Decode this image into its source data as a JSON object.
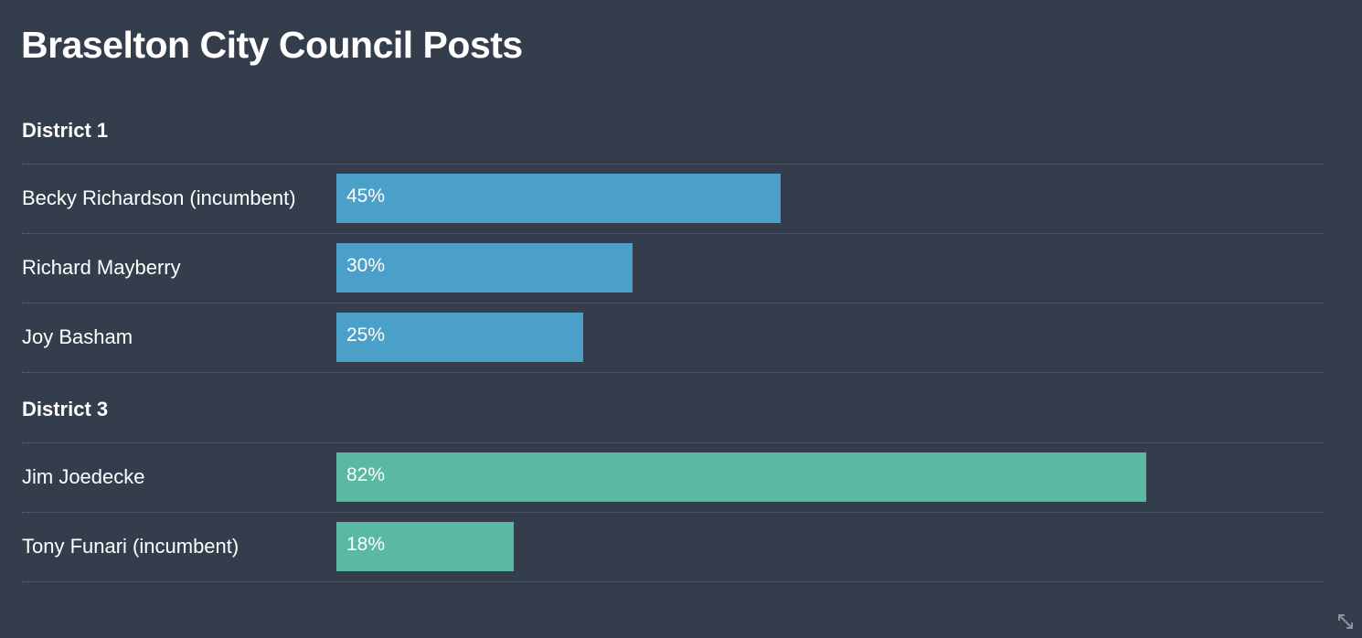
{
  "title": "Braselton City Council Posts",
  "colors": {
    "background": "#343d4c",
    "district_1_bar": "#4ba0ca",
    "district_3_bar": "#5ab9a2"
  },
  "chart_data": {
    "type": "bar",
    "orientation": "horizontal",
    "title": "Braselton City Council Posts",
    "xlim": [
      0,
      100
    ],
    "groups": [
      {
        "name": "District 1",
        "color": "#4ba0ca",
        "categories": [
          "Becky Richardson (incumbent)",
          "Richard Mayberry",
          "Joy Basham"
        ],
        "values": [
          45,
          30,
          25
        ],
        "labels": [
          "45%",
          "30%",
          "25%"
        ]
      },
      {
        "name": "District 3",
        "color": "#5ab9a2",
        "categories": [
          "Jim Joedecke",
          "Tony Funari (incumbent)"
        ],
        "values": [
          82,
          18
        ],
        "labels": [
          "82%",
          "18%"
        ]
      }
    ]
  },
  "icons": {
    "corner": "resize-icon"
  }
}
